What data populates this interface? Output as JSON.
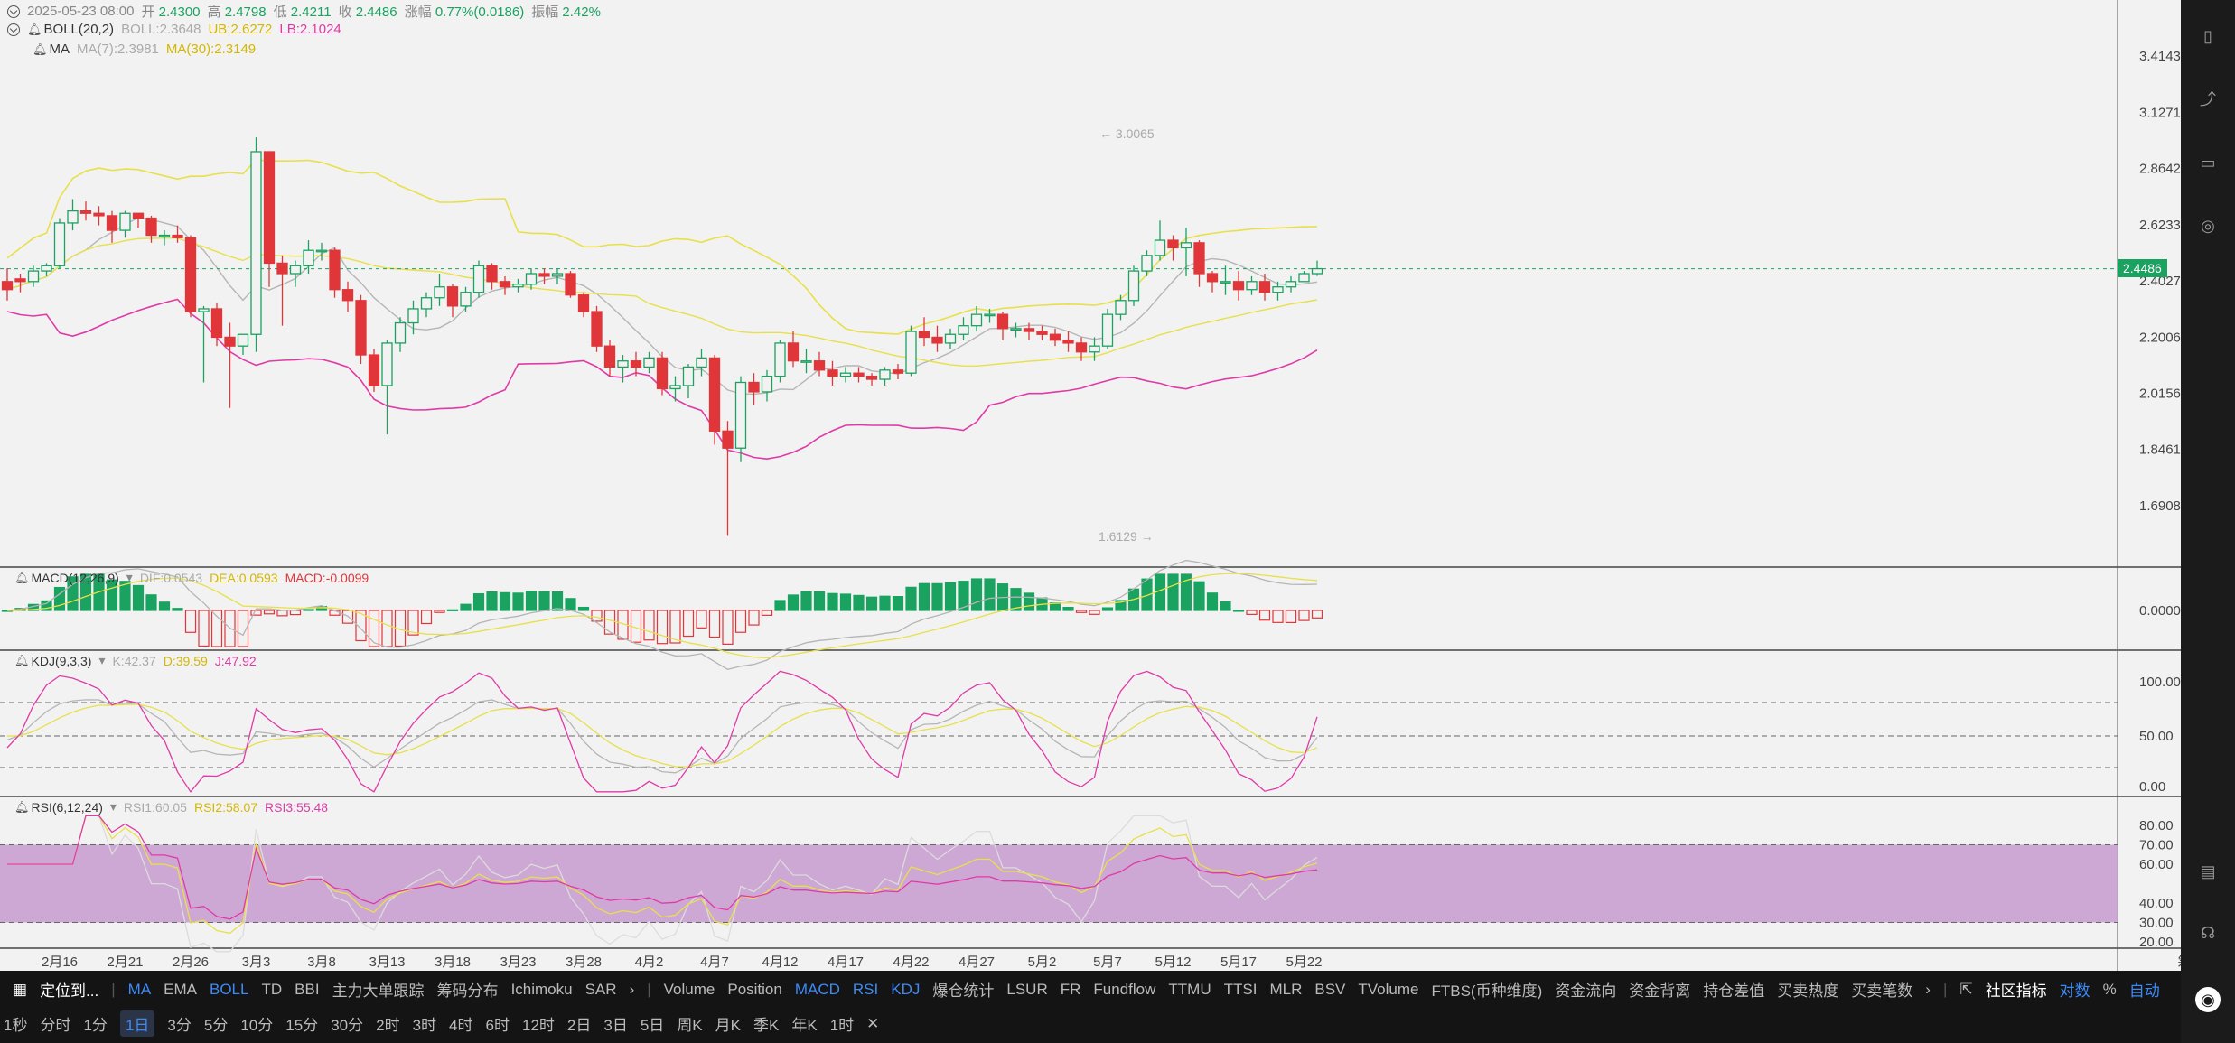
{
  "header": {
    "datetime": "2025-05-23 08:00",
    "open_label": "开",
    "open": "2.4300",
    "high_label": "高",
    "high": "2.4798",
    "low_label": "低",
    "low": "2.4211",
    "close_label": "收",
    "close": "2.4486",
    "change_label": "涨幅",
    "change": "0.77%(0.0186)",
    "amplitude_label": "振幅",
    "amplitude": "2.42%"
  },
  "boll": {
    "name": "BOLL(20,2)",
    "boll": "BOLL:2.3648",
    "ub": "UB:2.6272",
    "lb": "LB:2.1024"
  },
  "ma": {
    "name": "MA",
    "ma7": "MA(7):2.3981",
    "ma30": "MA(30):2.3149"
  },
  "price_axis": [
    "3.4143",
    "3.1271",
    "2.8642",
    "2.6233",
    "2.4027",
    "2.2006",
    "2.0156",
    "1.8461",
    "1.6908"
  ],
  "current_price": "2.4486",
  "high_marker": "← 3.0065",
  "low_marker": "1.6129 →",
  "macd": {
    "name": "MACD(12,26,9)",
    "dif": "DIF:0.0543",
    "dea": "DEA:0.0593",
    "macd": "MACD:-0.0099",
    "axis": [
      "0.0000"
    ]
  },
  "kdj": {
    "name": "KDJ(9,3,3)",
    "k": "K:42.37",
    "d": "D:39.59",
    "j": "J:47.92",
    "axis": [
      "100.00",
      "50.00",
      "0.00"
    ]
  },
  "rsi": {
    "name": "RSI(6,12,24)",
    "rsi1": "RSI1:60.05",
    "rsi2": "RSI2:58.07",
    "rsi3": "RSI3:55.48",
    "axis": [
      "80.00",
      "70.00",
      "60.00",
      "40.00",
      "30.00",
      "20.00"
    ]
  },
  "date_axis": [
    "2月16",
    "2月21",
    "2月26",
    "3月3",
    "3月8",
    "3月13",
    "3月18",
    "3月23",
    "3月28",
    "4月2",
    "4月7",
    "4月12",
    "4月17",
    "4月22",
    "4月27",
    "5月2",
    "5月7",
    "5月12",
    "5月17",
    "5月22"
  ],
  "date_axis_right": [
    "筹",
    "爆"
  ],
  "toolbar": {
    "locate": "定位到...",
    "main_indicators": [
      "MA",
      "EMA",
      "BOLL",
      "TD",
      "BBI",
      "主力大单跟踪",
      "筹码分布",
      "Ichimoku",
      "SAR"
    ],
    "sub_indicators": [
      "Volume",
      "Position",
      "MACD",
      "RSI",
      "KDJ",
      "爆仓统计",
      "LSUR",
      "FR",
      "Fundflow",
      "TTMU",
      "TTSI",
      "MLR",
      "BSV",
      "TVolume",
      "FTBS(币种维度)",
      "资金流向",
      "资金背离",
      "持仓差值",
      "买卖热度",
      "买卖笔数"
    ],
    "community": "社区指标",
    "log": "对数",
    "percent": "%",
    "auto": "自动"
  },
  "timeframes": [
    "1秒",
    "分时",
    "1分",
    "1日",
    "3分",
    "5分",
    "10分",
    "15分",
    "30分",
    "2时",
    "3时",
    "4时",
    "6时",
    "12时",
    "2日",
    "3日",
    "5日",
    "周K",
    "月K",
    "季K",
    "年K",
    "1时"
  ],
  "selected_timeframe": "1日",
  "chart_data": {
    "type": "candlestick",
    "x": [
      "2月12",
      "2月13",
      "2月14",
      "2月15",
      "2月16",
      "2月17",
      "2月18",
      "2月19",
      "2月20",
      "2月21",
      "2月22",
      "2月23",
      "2月24",
      "2月25",
      "2月26",
      "2月27",
      "2月28",
      "3月1",
      "3月2",
      "3月3",
      "3月4",
      "3月5",
      "3月6",
      "3月7",
      "3月8",
      "3月9",
      "3月10",
      "3月11",
      "3月12",
      "3月13",
      "3月14",
      "3月15",
      "3月16",
      "3月17",
      "3月18",
      "3月19",
      "3月20",
      "3月21",
      "3月22",
      "3月23",
      "3月24",
      "3月25",
      "3月26",
      "3月27",
      "3月28",
      "3月29",
      "3月30",
      "3月31",
      "4月1",
      "4月2",
      "4月3",
      "4月4",
      "4月5",
      "4月6",
      "4月7",
      "4月8",
      "4月9",
      "4月10",
      "4月11",
      "4月12",
      "4月13",
      "4月14",
      "4月15",
      "4月16",
      "4月17",
      "4月18",
      "4月19",
      "4月20",
      "4月21",
      "4月22",
      "4月23",
      "4月24",
      "4月25",
      "4月26",
      "4月27",
      "4月28",
      "4月29",
      "4月30",
      "5月1",
      "5月2",
      "5月3",
      "5月4",
      "5月5",
      "5月6",
      "5月7",
      "5月8",
      "5月9",
      "5月10",
      "5月11",
      "5月12",
      "5月13",
      "5月14",
      "5月15",
      "5月16",
      "5月17",
      "5月18",
      "5月19",
      "5月20",
      "5月21",
      "5月22",
      "5月23"
    ],
    "open": [
      2.4,
      2.41,
      2.4,
      2.44,
      2.46,
      2.63,
      2.68,
      2.67,
      2.66,
      2.6,
      2.67,
      2.65,
      2.58,
      2.58,
      2.57,
      2.29,
      2.3,
      2.2,
      2.17,
      2.21,
      2.94,
      2.47,
      2.43,
      2.46,
      2.52,
      2.52,
      2.37,
      2.33,
      2.14,
      2.04,
      2.18,
      2.25,
      2.3,
      2.34,
      2.38,
      2.31,
      2.36,
      2.46,
      2.4,
      2.38,
      2.39,
      2.43,
      2.42,
      2.43,
      2.35,
      2.29,
      2.17,
      2.1,
      2.12,
      2.1,
      2.13,
      2.03,
      2.04,
      2.1,
      2.13,
      1.9,
      1.85,
      2.05,
      2.02,
      2.07,
      2.18,
      2.12,
      2.12,
      2.09,
      2.07,
      2.08,
      2.07,
      2.06,
      2.09,
      2.08,
      2.22,
      2.2,
      2.18,
      2.21,
      2.24,
      2.28,
      2.28,
      2.23,
      2.23,
      2.22,
      2.21,
      2.19,
      2.18,
      2.15,
      2.17,
      2.28,
      2.33,
      2.44,
      2.5,
      2.56,
      2.53,
      2.55,
      2.43,
      2.4,
      2.4,
      2.37,
      2.4,
      2.36,
      2.38,
      2.4,
      2.43
    ],
    "close": [
      2.37,
      2.4,
      2.44,
      2.46,
      2.63,
      2.68,
      2.67,
      2.66,
      2.6,
      2.67,
      2.65,
      2.58,
      2.58,
      2.57,
      2.29,
      2.3,
      2.2,
      2.17,
      2.21,
      2.94,
      2.47,
      2.43,
      2.46,
      2.52,
      2.52,
      2.37,
      2.33,
      2.14,
      2.04,
      2.18,
      2.25,
      2.3,
      2.34,
      2.38,
      2.31,
      2.36,
      2.46,
      2.4,
      2.38,
      2.39,
      2.43,
      2.42,
      2.43,
      2.35,
      2.29,
      2.17,
      2.1,
      2.12,
      2.1,
      2.13,
      2.03,
      2.04,
      2.1,
      2.13,
      1.9,
      1.85,
      2.05,
      2.02,
      2.07,
      2.18,
      2.12,
      2.12,
      2.09,
      2.07,
      2.08,
      2.07,
      2.06,
      2.09,
      2.08,
      2.22,
      2.2,
      2.18,
      2.21,
      2.24,
      2.28,
      2.28,
      2.23,
      2.23,
      2.22,
      2.21,
      2.19,
      2.18,
      2.15,
      2.17,
      2.28,
      2.33,
      2.44,
      2.5,
      2.56,
      2.53,
      2.55,
      2.43,
      2.4,
      2.4,
      2.37,
      2.4,
      2.36,
      2.38,
      2.4,
      2.43,
      2.4486
    ],
    "high": [
      2.45,
      2.43,
      2.46,
      2.47,
      2.65,
      2.73,
      2.72,
      2.7,
      2.68,
      2.68,
      2.67,
      2.66,
      2.6,
      2.62,
      2.58,
      2.31,
      2.32,
      2.25,
      2.21,
      3.0065,
      2.94,
      2.5,
      2.48,
      2.56,
      2.55,
      2.53,
      2.4,
      2.35,
      2.16,
      2.19,
      2.27,
      2.33,
      2.36,
      2.43,
      2.39,
      2.38,
      2.48,
      2.47,
      2.42,
      2.41,
      2.45,
      2.45,
      2.45,
      2.44,
      2.36,
      2.31,
      2.19,
      2.14,
      2.15,
      2.15,
      2.15,
      2.07,
      2.11,
      2.16,
      2.14,
      1.93,
      2.07,
      2.08,
      2.09,
      2.19,
      2.22,
      2.16,
      2.15,
      2.12,
      2.1,
      2.1,
      2.08,
      2.1,
      2.11,
      2.24,
      2.27,
      2.24,
      2.23,
      2.27,
      2.31,
      2.3,
      2.29,
      2.25,
      2.25,
      2.24,
      2.23,
      2.22,
      2.2,
      2.2,
      2.3,
      2.35,
      2.46,
      2.52,
      2.64,
      2.58,
      2.61,
      2.56,
      2.44,
      2.46,
      2.44,
      2.42,
      2.43,
      2.4,
      2.42,
      2.44,
      2.4798
    ],
    "low": [
      2.33,
      2.36,
      2.38,
      2.42,
      2.45,
      2.6,
      2.64,
      2.62,
      2.55,
      2.57,
      2.61,
      2.55,
      2.54,
      2.55,
      2.27,
      2.05,
      2.17,
      1.97,
      2.14,
      2.15,
      2.38,
      2.24,
      2.38,
      2.43,
      2.48,
      2.34,
      2.29,
      2.11,
      2.02,
      1.89,
      2.15,
      2.21,
      2.27,
      2.31,
      2.27,
      2.29,
      2.34,
      2.37,
      2.35,
      2.36,
      2.37,
      2.39,
      2.39,
      2.34,
      2.27,
      2.15,
      2.07,
      2.05,
      2.07,
      2.08,
      2.01,
      1.99,
      2.0,
      2.07,
      1.86,
      1.6129,
      1.81,
      1.98,
      1.99,
      2.05,
      2.1,
      2.08,
      2.07,
      2.04,
      2.05,
      2.05,
      2.04,
      2.04,
      2.06,
      2.07,
      2.17,
      2.15,
      2.16,
      2.19,
      2.22,
      2.25,
      2.19,
      2.2,
      2.19,
      2.19,
      2.17,
      2.15,
      2.12,
      2.12,
      2.16,
      2.26,
      2.31,
      2.42,
      2.48,
      2.48,
      2.42,
      2.38,
      2.36,
      2.35,
      2.33,
      2.35,
      2.33,
      2.33,
      2.36,
      2.4,
      2.4211
    ],
    "price_axis_ticks": [
      3.4143,
      3.1271,
      2.8642,
      2.6233,
      2.4027,
      2.2006,
      2.0156,
      1.8461,
      1.6908
    ]
  },
  "colors": {
    "up": "#1aa260",
    "down": "#e0363a",
    "yellow": "#e8e04a",
    "magenta": "#e03aa6",
    "gray": "#b5b5b5",
    "rsi_band": "#c9a0d0"
  }
}
